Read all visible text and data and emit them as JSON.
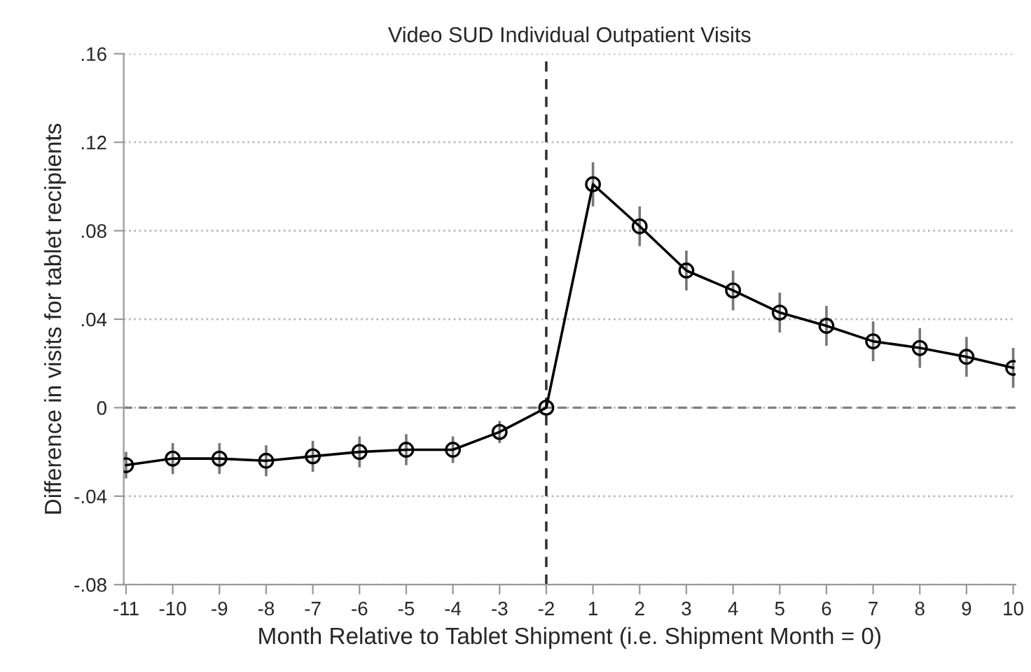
{
  "chart_data": {
    "type": "line",
    "title": "Video SUD Individual Outpatient Visits",
    "xlabel": "Month Relative to Tablet Shipment (i.e. Shipment Month = 0)",
    "ylabel": "Difference in visits for tablet recipients",
    "categories": [
      "-11",
      "-10",
      "-9",
      "-8",
      "-7",
      "-6",
      "-5",
      "-4",
      "-3",
      "-2",
      "1",
      "2",
      "3",
      "4",
      "5",
      "6",
      "7",
      "8",
      "9",
      "10"
    ],
    "series": [
      {
        "color": "#000000",
        "values": [
          -0.026,
          -0.023,
          -0.023,
          -0.024,
          -0.022,
          -0.02,
          -0.019,
          -0.019,
          -0.011,
          0,
          0.101,
          0.082,
          0.062,
          0.053,
          0.043,
          0.037,
          0.03,
          0.027,
          0.023,
          0.018
        ],
        "errors": [
          0.006,
          0.007,
          0.007,
          0.007,
          0.007,
          0.007,
          0.007,
          0.006,
          0.005,
          null,
          0.01,
          0.009,
          0.009,
          0.009,
          0.009,
          0.009,
          0.009,
          0.009,
          0.009,
          0.009
        ]
      }
    ],
    "ylim": [
      -0.08,
      0.16
    ],
    "yticks": [
      {
        "value": -0.08,
        "label": "-.08"
      },
      {
        "value": -0.04,
        "label": "-.04"
      },
      {
        "value": 0,
        "label": "0"
      },
      {
        "value": 0.04,
        "label": ".04"
      },
      {
        "value": 0.08,
        "label": ".08"
      },
      {
        "value": 0.12,
        "label": ".12"
      },
      {
        "value": 0.16,
        "label": ".16"
      }
    ],
    "ref_lines": [
      {
        "axis": "y",
        "value": 0,
        "line_style": "dashed",
        "color": "#808080"
      },
      {
        "axis": "x",
        "value": "-2",
        "line_style": "dashed",
        "color": "#333333"
      }
    ],
    "grid": "y",
    "marker": "circle",
    "line_style": "solid",
    "legend": false
  }
}
